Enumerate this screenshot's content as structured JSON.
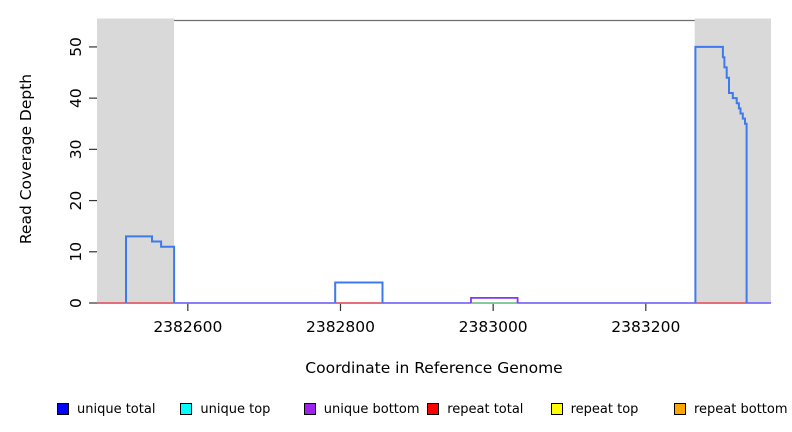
{
  "chart_data": {
    "type": "line",
    "title": "",
    "xlabel": "Coordinate in Reference Genome",
    "ylabel": "Read Coverage Depth",
    "xlim": [
      2382481,
      2383364
    ],
    "ylim": [
      0,
      55.55
    ],
    "xticks": [
      2382600,
      2382800,
      2383000,
      2383200
    ],
    "yticks": [
      0,
      10,
      20,
      30,
      40,
      50
    ],
    "grid": false,
    "legend_position": "bottom",
    "background": "#ffffff",
    "frame_color": "#6e6e6e",
    "tick_color": "#333333",
    "shaded_regions": [
      {
        "name": "repeat-region-left",
        "x0": 2382481,
        "x1": 2382582,
        "color": "#d9d9d9"
      },
      {
        "name": "repeat-region-right",
        "x0": 2383264,
        "x1": 2383364,
        "color": "#d9d9d9"
      }
    ],
    "lines": [
      {
        "name": "unique-bottom-baseline",
        "series": "unique bottom",
        "color": "#7b6cf5",
        "width": 1.8,
        "segments": [
          [
            [
              2382481,
              0
            ],
            [
              2383364,
              0
            ]
          ]
        ]
      },
      {
        "name": "repeat-total-baseline",
        "series": "repeat total",
        "color": "#ee6a6a",
        "width": 1.8,
        "segments": [
          [
            [
              2382481,
              0
            ],
            [
              2382582,
              0
            ]
          ],
          [
            [
              2382793,
              0
            ],
            [
              2382855,
              0
            ]
          ],
          [
            [
              2383265,
              0
            ],
            [
              2383332,
              0
            ]
          ]
        ]
      },
      {
        "name": "top-strand-zero-line",
        "series": "unique top",
        "color": "#7fdc7f",
        "width": 1.6,
        "segments": [
          [
            [
              2382971,
              0
            ],
            [
              2383032,
              0
            ]
          ]
        ]
      },
      {
        "name": "unique-bottom-step",
        "series": "unique bottom",
        "color": "#8636f2",
        "width": 1.8,
        "segments": [
          [
            [
              2382971,
              0
            ],
            [
              2382971,
              1
            ],
            [
              2383032,
              1
            ],
            [
              2383032,
              0
            ]
          ]
        ]
      },
      {
        "name": "unique-total-coverage",
        "series": "unique total",
        "color": "#3d7bed",
        "width": 2,
        "segments": [
          [
            [
              2382519,
              0
            ],
            [
              2382519,
              13
            ],
            [
              2382553,
              13
            ],
            [
              2382553,
              12
            ],
            [
              2382565,
              12
            ],
            [
              2382565,
              11
            ],
            [
              2382582,
              11
            ],
            [
              2382582,
              0
            ]
          ],
          [
            [
              2382793,
              0
            ],
            [
              2382793,
              4
            ],
            [
              2382855,
              4
            ],
            [
              2382855,
              0
            ]
          ],
          [
            [
              2383265,
              0
            ],
            [
              2383265,
              50
            ],
            [
              2383301,
              50
            ],
            [
              2383301,
              48
            ],
            [
              2383303,
              48
            ],
            [
              2383303,
              46
            ],
            [
              2383306,
              46
            ],
            [
              2383306,
              44
            ],
            [
              2383309,
              44
            ],
            [
              2383309,
              41
            ],
            [
              2383314,
              41
            ],
            [
              2383314,
              40
            ],
            [
              2383319,
              40
            ],
            [
              2383319,
              39
            ],
            [
              2383322,
              39
            ],
            [
              2383322,
              38
            ],
            [
              2383324,
              38
            ],
            [
              2383324,
              37
            ],
            [
              2383327,
              37
            ],
            [
              2383327,
              36
            ],
            [
              2383330,
              36
            ],
            [
              2383330,
              35
            ],
            [
              2383332,
              35
            ],
            [
              2383332,
              0
            ]
          ]
        ]
      }
    ],
    "legend": [
      {
        "label": "unique total",
        "color": "#0000ff"
      },
      {
        "label": "unique top",
        "color": "#00ffff"
      },
      {
        "label": "unique bottom",
        "color": "#a020f0"
      },
      {
        "label": "repeat total",
        "color": "#ff0000"
      },
      {
        "label": "repeat top",
        "color": "#ffff00"
      },
      {
        "label": "repeat bottom",
        "color": "#ffa500"
      }
    ]
  }
}
